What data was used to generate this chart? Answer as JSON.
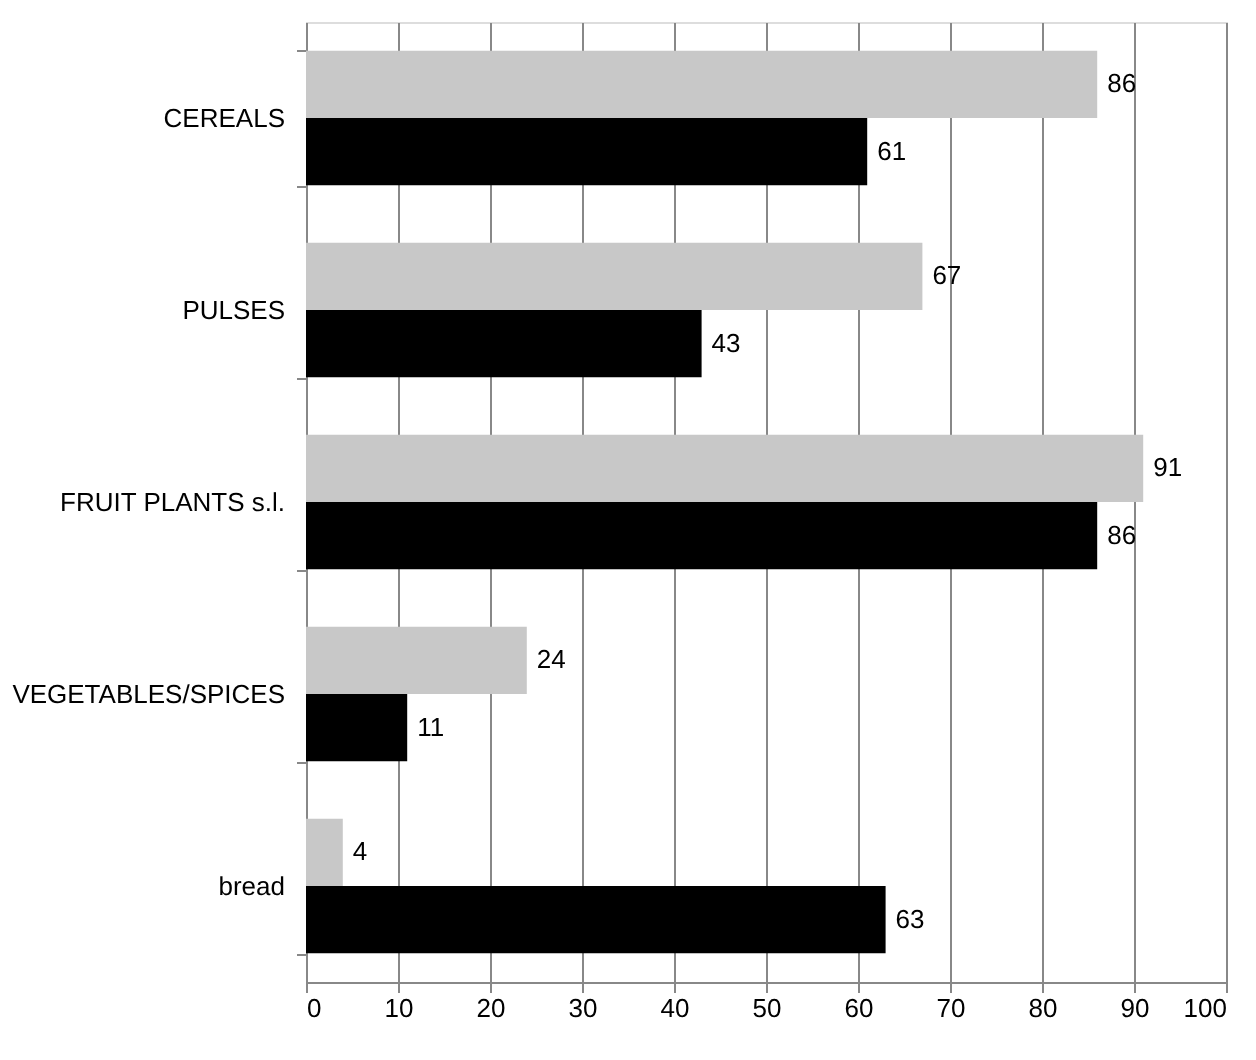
{
  "chart_data": {
    "type": "bar",
    "orientation": "horizontal",
    "categories": [
      "CEREALS",
      "PULSES",
      "FRUIT PLANTS s.l.",
      "VEGETABLES/SPICES",
      "bread"
    ],
    "series": [
      {
        "color": "#c8c8c8",
        "values": [
          86,
          67,
          91,
          24,
          4
        ]
      },
      {
        "color": "#000000",
        "values": [
          61,
          43,
          86,
          11,
          63
        ]
      }
    ],
    "xlim": [
      0,
      100
    ],
    "xticks": [
      0,
      10,
      20,
      30,
      40,
      50,
      60,
      70,
      80,
      90,
      100
    ],
    "grid": "x",
    "data_labels": true
  }
}
